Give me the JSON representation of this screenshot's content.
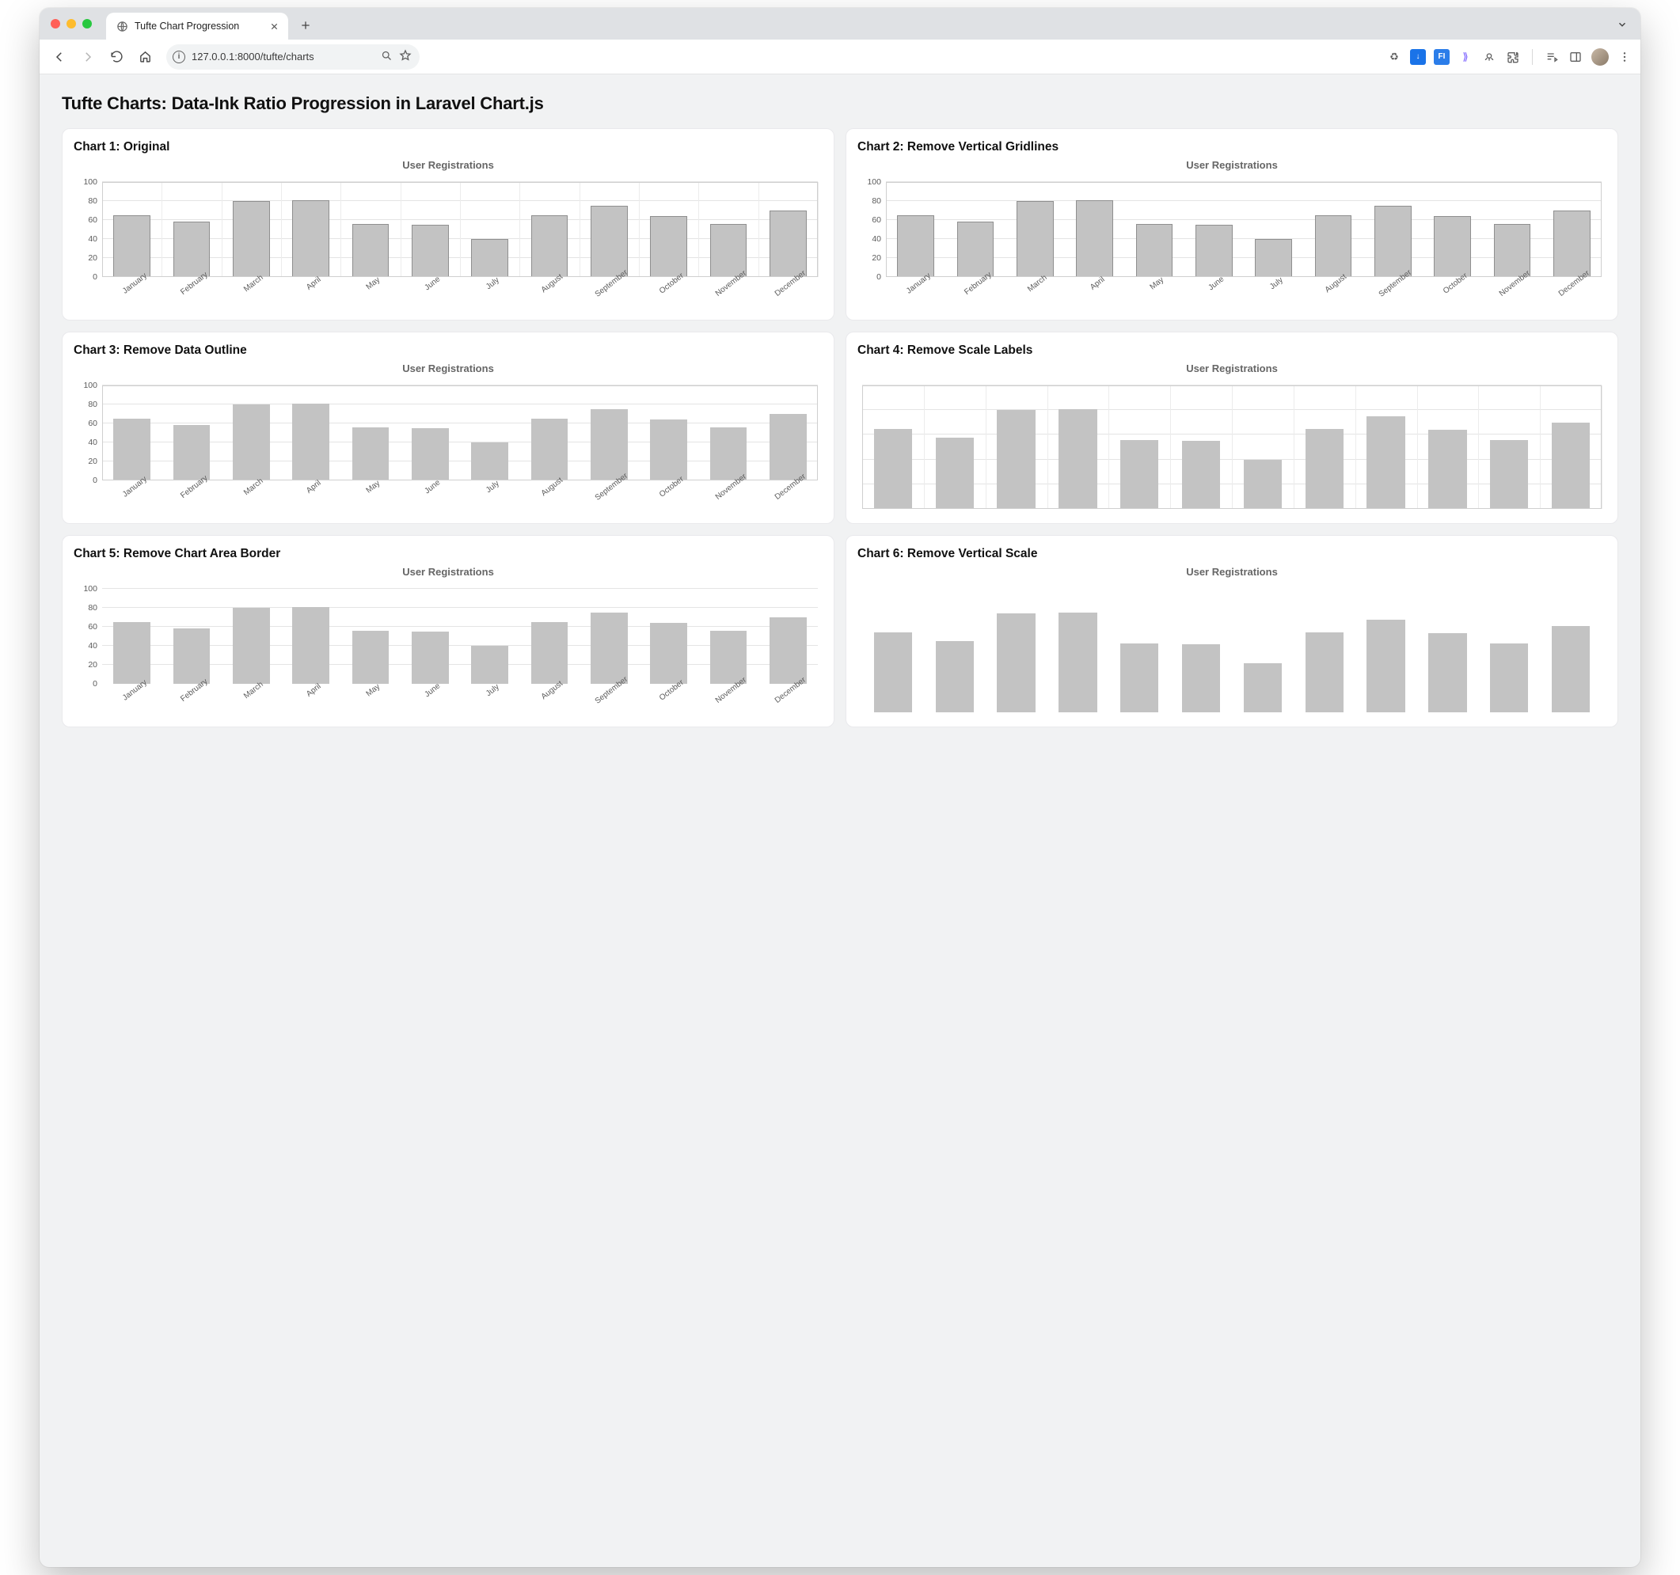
{
  "browser": {
    "tab_title": "Tufte Chart Progression",
    "url": "127.0.0.1:8000/tufte/charts"
  },
  "page": {
    "heading": "Tufte Charts: Data-Ink Ratio Progression in Laravel Chart.js"
  },
  "months": [
    "January",
    "February",
    "March",
    "April",
    "May",
    "June",
    "July",
    "August",
    "September",
    "October",
    "November",
    "December"
  ],
  "values": [
    65,
    58,
    80,
    81,
    56,
    55,
    40,
    65,
    75,
    64,
    56,
    70
  ],
  "chart_common": {
    "label": "User Registrations",
    "ymax": 100,
    "ytick_step": 20,
    "bar_color": "#c3c3c3",
    "bar_outline_color": "#8f8f8f",
    "grid_color": "#e4e4e4",
    "vgrid_color": "#ececec",
    "border_color": "#cfcfcf",
    "tick_font_color": "#5b5b5b",
    "title_color": "#666666",
    "bar_width_ratio": 0.62
  },
  "charts": [
    {
      "id": "c1",
      "title": "Chart 1: Original",
      "show_vgrid": true,
      "show_hgrid": true,
      "show_outline": true,
      "show_yticks": true,
      "show_xlabels": true,
      "show_border": true
    },
    {
      "id": "c2",
      "title": "Chart 2: Remove Vertical Gridlines",
      "show_vgrid": false,
      "show_hgrid": true,
      "show_outline": true,
      "show_yticks": true,
      "show_xlabels": true,
      "show_border": true
    },
    {
      "id": "c3",
      "title": "Chart 3: Remove Data Outline",
      "show_vgrid": false,
      "show_hgrid": true,
      "show_outline": false,
      "show_yticks": true,
      "show_xlabels": true,
      "show_border": true
    },
    {
      "id": "c4",
      "title": "Chart 4: Remove Scale Labels",
      "show_vgrid": true,
      "show_hgrid": true,
      "show_outline": false,
      "show_yticks": false,
      "show_xlabels": false,
      "show_border": true
    },
    {
      "id": "c5",
      "title": "Chart 5: Remove Chart Area Border",
      "show_vgrid": false,
      "show_hgrid": true,
      "show_outline": false,
      "show_yticks": true,
      "show_xlabels": true,
      "show_border": false
    },
    {
      "id": "c6",
      "title": "Chart 6: Remove Vertical Scale",
      "show_vgrid": false,
      "show_hgrid": false,
      "show_outline": false,
      "show_yticks": false,
      "show_xlabels": false,
      "show_border": false
    }
  ]
}
